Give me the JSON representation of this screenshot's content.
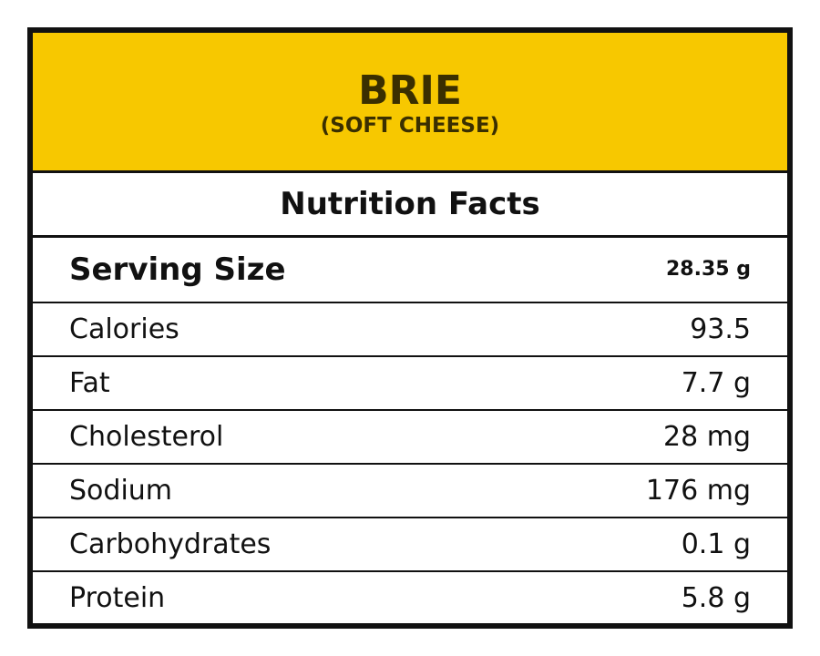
{
  "header": {
    "title": "BRIE",
    "subtitle": "(SOFT CHEESE)"
  },
  "table": {
    "title": "Nutrition Facts",
    "serving": [
      "Serving Size",
      "28.35 g"
    ],
    "rows": [
      [
        "Calories",
        "93.5"
      ],
      [
        "Fat",
        "7.7 g"
      ],
      [
        "Cholesterol",
        "28 mg"
      ],
      [
        "Sodium",
        "176 mg"
      ],
      [
        "Carbohydrates",
        "0.1 g"
      ],
      [
        "Protein",
        "5.8 g"
      ]
    ]
  }
}
